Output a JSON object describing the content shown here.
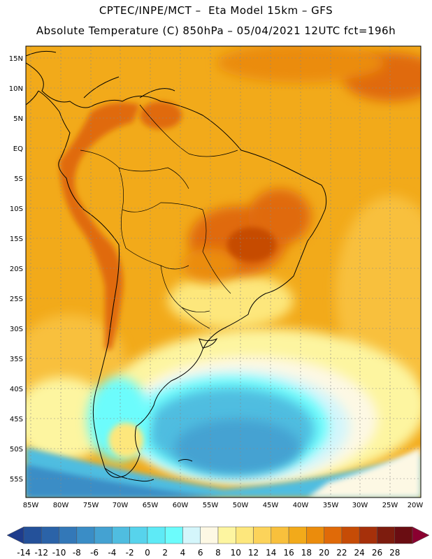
{
  "title": {
    "line1": "CPTEC/INPE/MCT –  Eta Model 15km – GFS",
    "line2": "Absolute Temperature (C) 850hPa – 05/04/2021 12UTC fct=196h"
  },
  "map": {
    "lat_labels": [
      "15N",
      "10N",
      "5N",
      "EQ",
      "5S",
      "10S",
      "15S",
      "20S",
      "25S",
      "30S",
      "35S",
      "40S",
      "45S",
      "50S",
      "55S"
    ],
    "lon_labels": [
      "85W",
      "80W",
      "75W",
      "70W",
      "65W",
      "60W",
      "55W",
      "50W",
      "45W",
      "40W",
      "35W",
      "30W",
      "25W",
      "20W"
    ]
  },
  "colorbar": {
    "labels": [
      "-14",
      "-12",
      "-10",
      "-8",
      "-6",
      "-4",
      "-2",
      "0",
      "2",
      "4",
      "6",
      "8",
      "10",
      "12",
      "14",
      "16",
      "18",
      "20",
      "22",
      "24",
      "26",
      "28"
    ],
    "colors": [
      "#1e3c8c",
      "#24519a",
      "#2b63a8",
      "#3378b8",
      "#3a8dc6",
      "#44a2d2",
      "#4fbde0",
      "#57d3ec",
      "#5eeaf6",
      "#6cfcfc",
      "#d4f6fb",
      "#fdf8e4",
      "#fdf5a0",
      "#fde77c",
      "#fcd35a",
      "#f8c03c",
      "#f2aa1a",
      "#eb8c0c",
      "#e06a08",
      "#c64c06",
      "#a6300a",
      "#7d1c0e",
      "#6a0d12",
      "#8a0030"
    ]
  }
}
